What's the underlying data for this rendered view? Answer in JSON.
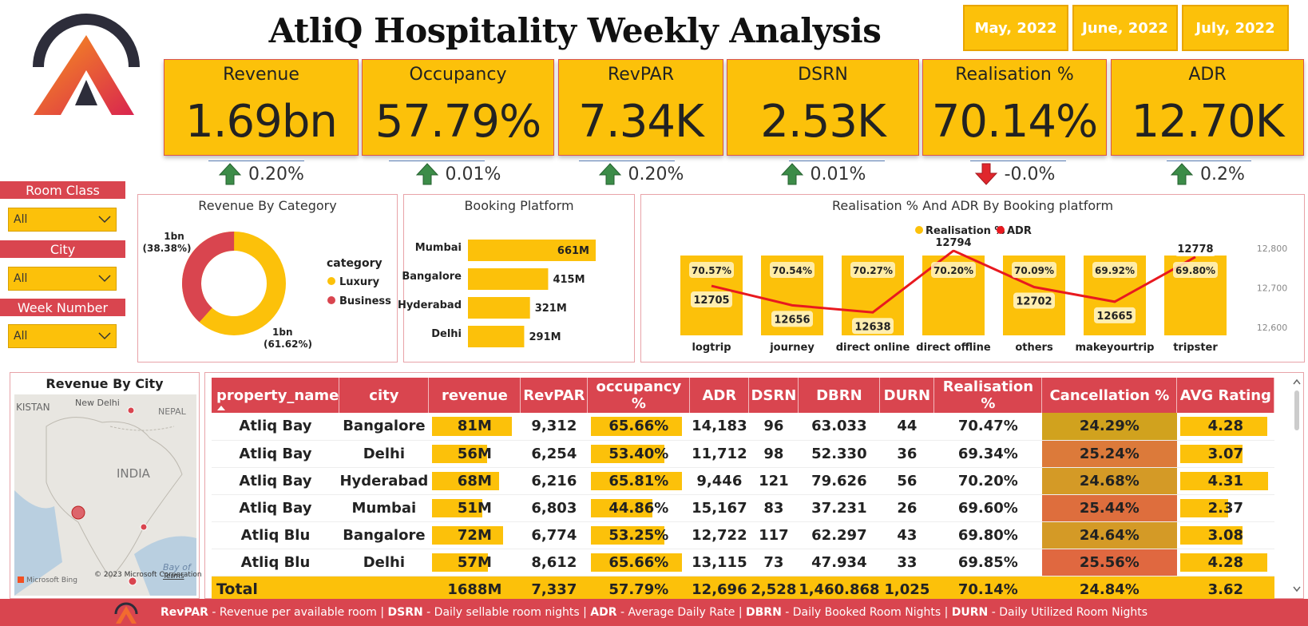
{
  "title": "AtliQ Hospitality Weekly Analysis",
  "months": [
    "May, 2022",
    "June, 2022",
    "July, 2022"
  ],
  "kpis": [
    {
      "label": "Revenue",
      "value": "1.69bn",
      "delta": "0.20%",
      "dir": "up"
    },
    {
      "label": "Occupancy",
      "value": "57.79%",
      "delta": "0.01%",
      "dir": "up"
    },
    {
      "label": "RevPAR",
      "value": "7.34K",
      "delta": "0.20%",
      "dir": "up"
    },
    {
      "label": "DSRN",
      "value": "2.53K",
      "delta": "0.01%",
      "dir": "up"
    },
    {
      "label": "Realisation %",
      "value": "70.14%",
      "delta": "-0.0%",
      "dir": "down"
    },
    {
      "label": "ADR",
      "value": "12.70K",
      "delta": "0.2%",
      "dir": "up"
    }
  ],
  "slicers": [
    {
      "label": "Room Class",
      "value": "All"
    },
    {
      "label": "City",
      "value": "All"
    },
    {
      "label": "Week Number",
      "value": "All"
    }
  ],
  "colors": {
    "accent": "#fcc10a",
    "brand_red": "#d9454f",
    "line_red": "#e8191f"
  },
  "donut": {
    "title": "Revenue By Category",
    "legend_title": "category",
    "slices": [
      {
        "name": "Luxury",
        "value": 61.62,
        "label": "1bn",
        "pct": "(61.62%)",
        "color": "#fcc10a"
      },
      {
        "name": "Business",
        "value": 38.38,
        "label": "1bn",
        "pct": "(38.38%)",
        "color": "#d9454f"
      }
    ]
  },
  "booking": {
    "title": "Booking Platform",
    "cities": [
      "Mumbai",
      "Bangalore",
      "Hyderabad",
      "Delhi"
    ],
    "values": [
      661,
      415,
      321,
      291
    ],
    "labels": [
      "661M",
      "415M",
      "321M",
      "291M"
    ]
  },
  "chart_data": {
    "type": "bar",
    "title": "Realisation % And ADR By Booking platform",
    "categories": [
      "logtrip",
      "journey",
      "direct online",
      "direct offline",
      "others",
      "makeyourtrip",
      "tripster"
    ],
    "series": [
      {
        "name": "Realisation %",
        "type": "bar",
        "values": [
          70.57,
          70.54,
          70.27,
          70.2,
          70.09,
          69.92,
          69.8
        ],
        "labels": [
          "70.57%",
          "70.54%",
          "70.27%",
          "70.20%",
          "70.09%",
          "69.92%",
          "69.80%"
        ]
      },
      {
        "name": "ADR",
        "type": "line",
        "values": [
          12705,
          12656,
          12638,
          12794,
          12702,
          12665,
          12778
        ],
        "labels": [
          "12705",
          "12656",
          "12638",
          "12794",
          "12702",
          "12665",
          "12778"
        ]
      }
    ],
    "y2_ticks": [
      "12,800",
      "12,700",
      "12,600"
    ],
    "y2lim": [
      12580,
      12810
    ],
    "legend": "top-center"
  },
  "map": {
    "title": "Revenue By City",
    "labels": [
      "KISTAN",
      "New Delhi",
      "NEPAL",
      "INDIA",
      "Bay of"
    ],
    "attribution": "© 2023 Microsoft Corporation",
    "terms": "Terms",
    "bing": "Microsoft Bing"
  },
  "table": {
    "headers": [
      "property_name",
      "city",
      "revenue",
      "RevPAR",
      "occupancy %",
      "ADR",
      "DSRN",
      "DBRN",
      "DURN",
      "Realisation %",
      "Cancellation %",
      "AVG Rating"
    ],
    "rows": [
      {
        "property": "Atliq Bay",
        "city": "Bangalore",
        "revenue": "81M",
        "rev_f": 1.0,
        "revpar": "9,312",
        "occ": "65.66%",
        "occ_f": 0.997,
        "adr": "14,183",
        "dsrn": "96",
        "dbrn": "63.033",
        "durn": "44",
        "real": "70.47%",
        "canc": "24.29%",
        "canc_color": "#d1a21e",
        "rating": "4.28",
        "rating_f": 0.99
      },
      {
        "property": "Atliq Bay",
        "city": "Delhi",
        "revenue": "56M",
        "rev_f": 0.69,
        "revpar": "6,254",
        "occ": "53.40%",
        "occ_f": 0.81,
        "adr": "11,712",
        "dsrn": "98",
        "dbrn": "52.330",
        "durn": "36",
        "real": "69.34%",
        "canc": "25.24%",
        "canc_color": "#dc7a3a",
        "rating": "3.07",
        "rating_f": 0.71
      },
      {
        "property": "Atliq Bay",
        "city": "Hyderabad",
        "revenue": "68M",
        "rev_f": 0.84,
        "revpar": "6,216",
        "occ": "65.81%",
        "occ_f": 1.0,
        "adr": "9,446",
        "dsrn": "121",
        "dbrn": "79.626",
        "durn": "56",
        "real": "70.20%",
        "canc": "24.68%",
        "canc_color": "#d49a26",
        "rating": "4.31",
        "rating_f": 1.0
      },
      {
        "property": "Atliq Bay",
        "city": "Mumbai",
        "revenue": "51M",
        "rev_f": 0.63,
        "revpar": "6,803",
        "occ": "44.86%",
        "occ_f": 0.68,
        "adr": "15,167",
        "dsrn": "83",
        "dbrn": "37.231",
        "durn": "26",
        "real": "69.60%",
        "canc": "25.44%",
        "canc_color": "#de6e3d",
        "rating": "2.37",
        "rating_f": 0.55
      },
      {
        "property": "Atliq Blu",
        "city": "Bangalore",
        "revenue": "72M",
        "rev_f": 0.89,
        "revpar": "6,774",
        "occ": "53.25%",
        "occ_f": 0.81,
        "adr": "12,722",
        "dsrn": "117",
        "dbrn": "62.297",
        "durn": "43",
        "real": "69.80%",
        "canc": "24.64%",
        "canc_color": "#d49a26",
        "rating": "3.08",
        "rating_f": 0.71
      },
      {
        "property": "Atliq Blu",
        "city": "Delhi",
        "revenue": "57M",
        "rev_f": 0.7,
        "revpar": "8,612",
        "occ": "65.66%",
        "occ_f": 0.997,
        "adr": "13,115",
        "dsrn": "73",
        "dbrn": "47.934",
        "durn": "33",
        "real": "69.85%",
        "canc": "25.56%",
        "canc_color": "#e06840",
        "rating": "4.28",
        "rating_f": 0.99
      }
    ],
    "total": {
      "property": "Total",
      "city": "",
      "revenue": "1688M",
      "revpar": "7,337",
      "occ": "57.79%",
      "adr": "12,696",
      "dsrn": "2,528",
      "dbrn": "1,460.868",
      "durn": "1,025",
      "real": "70.14%",
      "canc": "24.84%",
      "rating": "3.62"
    }
  },
  "footer": [
    {
      "key": "RevPAR",
      "desc": " - Revenue per available room | "
    },
    {
      "key": "DSRN",
      "desc": " - Daily sellable room nights | "
    },
    {
      "key": "ADR",
      "desc": " - Average Daily Rate | "
    },
    {
      "key": "DBRN",
      "desc": " - Daily Booked Room Nights | "
    },
    {
      "key": "DURN",
      "desc": " - Daily Utilized Room Nights"
    }
  ]
}
